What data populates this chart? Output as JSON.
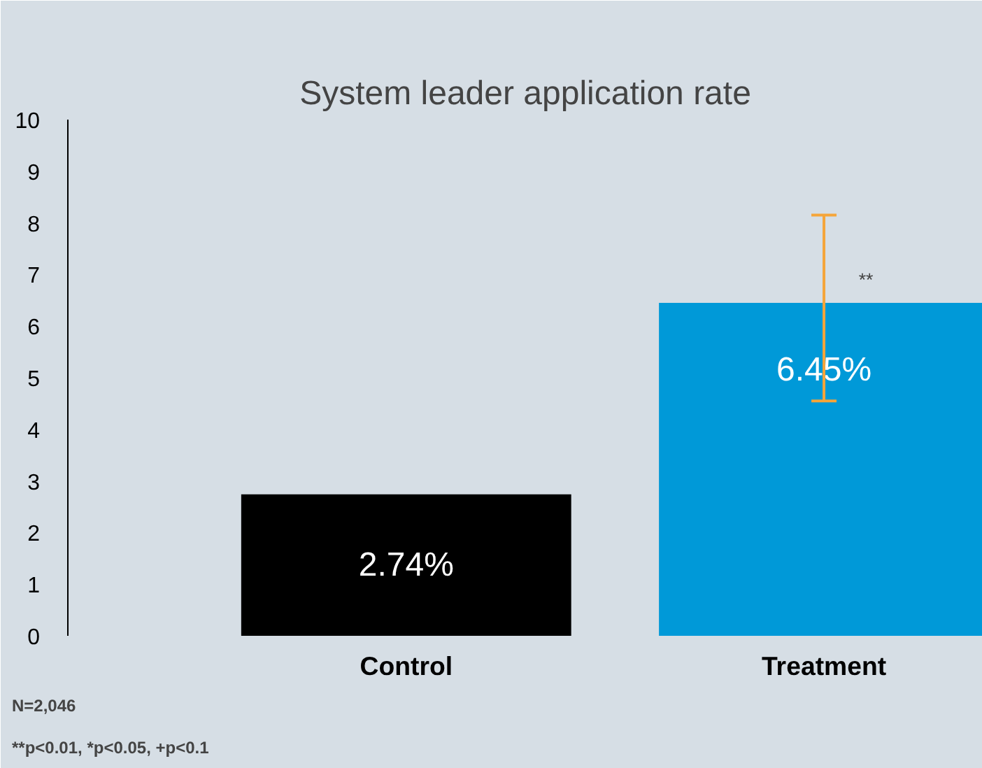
{
  "chart_data": {
    "type": "bar",
    "title": "System leader application rate",
    "categories": [
      "Control",
      "Treatment"
    ],
    "values": [
      2.74,
      6.45
    ],
    "colors": [
      "#000000",
      "#0099d8"
    ],
    "errors": [
      null,
      [
        4.55,
        8.15
      ]
    ],
    "value_labels": [
      "2.74%",
      "6.45%"
    ],
    "ylim": [
      0,
      10
    ],
    "yticks": [
      0,
      1,
      2,
      3,
      4,
      5,
      6,
      7,
      8,
      9,
      10
    ],
    "grid": false,
    "annotations": [
      {
        "text": "**",
        "x": "Treatment",
        "y": 6.9
      },
      "N=2,046",
      "**p<0.01, *p<0.05, +p<0.1"
    ]
  }
}
